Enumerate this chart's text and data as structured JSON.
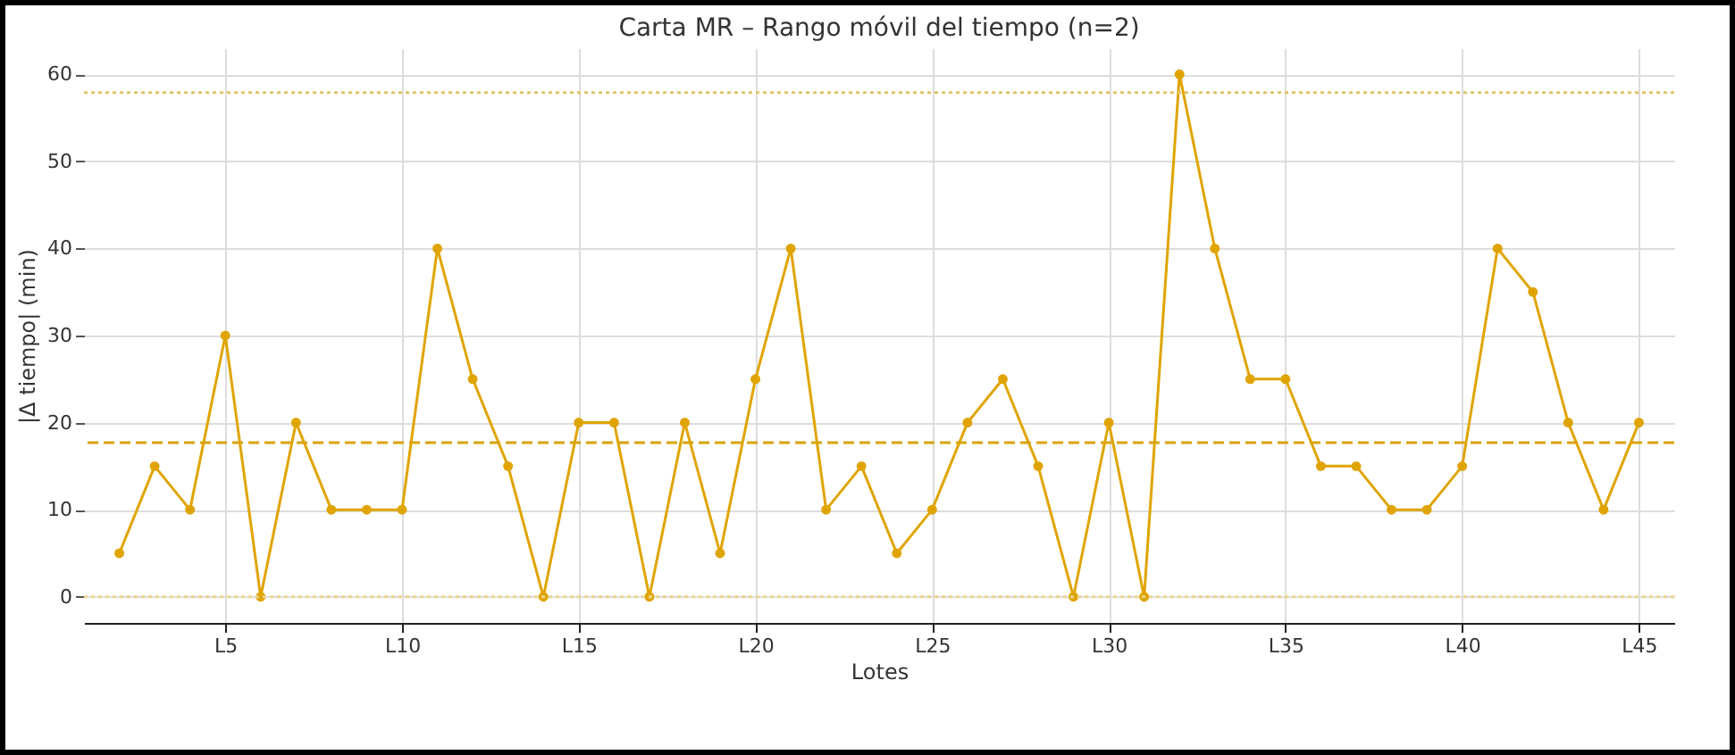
{
  "chart_data": {
    "type": "line",
    "title": "Carta MR – Rango móvil del tiempo (n=2)",
    "xlabel": "Lotes",
    "ylabel": "|Δ tiempo| (min)",
    "categories": [
      null,
      null,
      null,
      "L5",
      null,
      null,
      null,
      null,
      "L10",
      null,
      null,
      null,
      null,
      "L15",
      null,
      null,
      null,
      null,
      "L20",
      null,
      null,
      null,
      null,
      "L25",
      null,
      null,
      null,
      null,
      "L30",
      null,
      null,
      null,
      null,
      "L35",
      null,
      null,
      null,
      null,
      "L40",
      null,
      null,
      null,
      null,
      "L45"
    ],
    "series": [
      {
        "color": "#e0a400",
        "values": [
          5,
          15,
          10,
          30,
          0,
          20,
          10,
          10,
          10,
          40,
          25,
          15,
          0,
          20,
          20,
          0,
          20,
          5,
          25,
          40,
          10,
          15,
          5,
          10,
          20,
          25,
          15,
          0,
          20,
          0,
          60,
          40,
          25,
          25,
          15,
          15,
          10,
          10,
          15,
          40,
          35,
          20,
          10,
          20
        ]
      }
    ],
    "ylim": [
      -3,
      63
    ],
    "yticks": [
      0,
      10,
      20,
      30,
      40,
      50,
      60
    ],
    "ref_lines": [
      {
        "axis": "y",
        "value": 57.9,
        "color": "#e2c36a",
        "line_style": "dotted"
      },
      {
        "axis": "y",
        "value": 17.7,
        "color": "#d9a30c",
        "line_style": "dashed"
      },
      {
        "axis": "y",
        "value": 0,
        "color": "#ead48f",
        "line_style": "dotted"
      }
    ],
    "grid": true,
    "marker": "circle",
    "line_style": "solid"
  }
}
